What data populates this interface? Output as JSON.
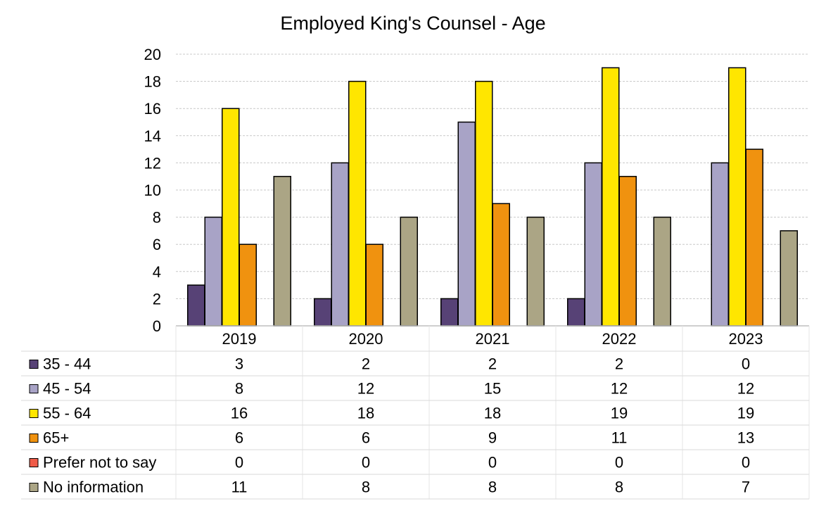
{
  "chart_data": {
    "type": "bar",
    "title": "Employed King's Counsel - Age",
    "xlabel": "",
    "ylabel": "",
    "categories": [
      "2019",
      "2020",
      "2021",
      "2022",
      "2023"
    ],
    "ylim": [
      0,
      20
    ],
    "yticks": [
      0,
      2,
      4,
      6,
      8,
      10,
      12,
      14,
      16,
      18,
      20
    ],
    "grid": true,
    "legend": "data-table-below",
    "series": [
      {
        "name": "35 - 44",
        "color": "#574276",
        "values": [
          3,
          2,
          2,
          2,
          0
        ]
      },
      {
        "name": "45 - 54",
        "color": "#a8a3c6",
        "values": [
          8,
          12,
          15,
          12,
          12
        ]
      },
      {
        "name": "55 - 64",
        "color": "#ffe600",
        "values": [
          16,
          18,
          18,
          19,
          19
        ]
      },
      {
        "name": "65+",
        "color": "#f0920f",
        "values": [
          6,
          6,
          9,
          11,
          13
        ]
      },
      {
        "name": "Prefer not to say",
        "color": "#ef5b48",
        "values": [
          0,
          0,
          0,
          0,
          0
        ]
      },
      {
        "name": "No information",
        "color": "#aba585",
        "values": [
          11,
          8,
          8,
          8,
          7
        ]
      }
    ]
  }
}
